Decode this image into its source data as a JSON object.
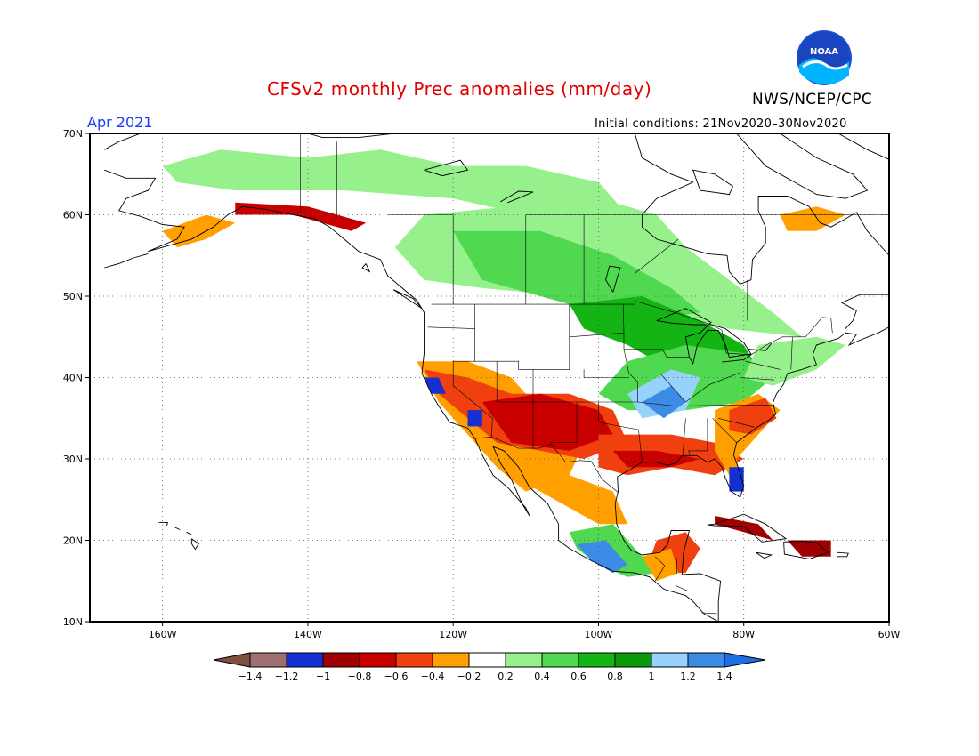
{
  "title": "CFSv2 monthly Prec anomalies (mm/day)",
  "agency": "NWS/NCEP/CPC",
  "logo_text": "NOAA",
  "valid_month": "Apr 2021",
  "initial_conditions": "Initial conditions: 21Nov2020–30Nov2020",
  "lat_labels": [
    "70N",
    "60N",
    "50N",
    "40N",
    "30N",
    "20N",
    "10N"
  ],
  "lon_labels": [
    "160W",
    "140W",
    "120W",
    "100W",
    "80W",
    "60W"
  ],
  "colorbar": {
    "labels": [
      "−1.4",
      "−1.2",
      "−1",
      "−0.8",
      "−0.6",
      "−0.4",
      "−0.2",
      "0.2",
      "0.4",
      "0.6",
      "0.8",
      "1",
      "1.2",
      "1.4"
    ],
    "colors": [
      "#7f4f3f",
      "#a07070",
      "#1530d0",
      "#a00000",
      "#c80000",
      "#f04010",
      "#ffa000",
      "#ffffff",
      "#96f08c",
      "#50d850",
      "#14b414",
      "#0a9a0a",
      "#96d2fa",
      "#3c8ce6",
      "#1e6ee6"
    ]
  },
  "map": {
    "lon_range": [
      -170,
      -60
    ],
    "lat_range": [
      10,
      70
    ],
    "colors": {
      "brown": "#7f4f3f",
      "mauve": "#a07070",
      "blue": "#1530d0",
      "darkred": "#a00000",
      "red": "#c80000",
      "orangered": "#f04010",
      "orange": "#ffa000",
      "lightgreen": "#96f08c",
      "green": "#50d850",
      "darkgreen": "#14b414",
      "deepgreen": "#0a9a0a",
      "lightblue": "#96d2fa",
      "midblue": "#3c8ce6"
    },
    "regions": [
      {
        "name": "alaska-north-green",
        "level": "lightgreen",
        "points": [
          [
            -160,
            66
          ],
          [
            -152,
            68
          ],
          [
            -140,
            67
          ],
          [
            -130,
            68
          ],
          [
            -120,
            66
          ],
          [
            -110,
            66
          ],
          [
            -100,
            64
          ],
          [
            -96,
            60
          ],
          [
            -100,
            58
          ],
          [
            -110,
            60
          ],
          [
            -120,
            62
          ],
          [
            -135,
            63
          ],
          [
            -150,
            63
          ],
          [
            -158,
            64
          ]
        ]
      },
      {
        "name": "canada-central-green",
        "level": "lightgreen",
        "points": [
          [
            -124,
            60
          ],
          [
            -112,
            61
          ],
          [
            -100,
            62
          ],
          [
            -92,
            60
          ],
          [
            -88,
            56
          ],
          [
            -82,
            52
          ],
          [
            -76,
            48
          ],
          [
            -72,
            45
          ],
          [
            -82,
            46
          ],
          [
            -92,
            48
          ],
          [
            -104,
            50
          ],
          [
            -116,
            51
          ],
          [
            -124,
            52
          ],
          [
            -128,
            56
          ]
        ]
      },
      {
        "name": "canada-prairie-green",
        "level": "green",
        "points": [
          [
            -120,
            58
          ],
          [
            -108,
            58
          ],
          [
            -98,
            55
          ],
          [
            -90,
            51
          ],
          [
            -86,
            48
          ],
          [
            -94,
            47
          ],
          [
            -104,
            49
          ],
          [
            -116,
            52
          ]
        ]
      },
      {
        "name": "great-lakes-green",
        "level": "darkgreen",
        "points": [
          [
            -104,
            49
          ],
          [
            -94,
            50
          ],
          [
            -86,
            47
          ],
          [
            -80,
            44
          ],
          [
            -78,
            41
          ],
          [
            -84,
            40
          ],
          [
            -90,
            41
          ],
          [
            -96,
            44
          ],
          [
            -102,
            46
          ]
        ]
      },
      {
        "name": "ohio-valley-green",
        "level": "green",
        "points": [
          [
            -96,
            42
          ],
          [
            -88,
            44
          ],
          [
            -80,
            43
          ],
          [
            -76,
            40
          ],
          [
            -80,
            37
          ],
          [
            -88,
            36
          ],
          [
            -96,
            36
          ],
          [
            -100,
            38
          ]
        ]
      },
      {
        "name": "midwest-blue",
        "level": "lightblue",
        "points": [
          [
            -96,
            38
          ],
          [
            -90,
            41
          ],
          [
            -86,
            40
          ],
          [
            -88,
            36
          ],
          [
            -94,
            35
          ]
        ]
      },
      {
        "name": "midwest-midblue",
        "level": "midblue",
        "points": [
          [
            -94,
            37
          ],
          [
            -90,
            39
          ],
          [
            -88,
            37
          ],
          [
            -91,
            35
          ]
        ]
      },
      {
        "name": "northeast-green",
        "level": "lightgreen",
        "points": [
          [
            -78,
            44
          ],
          [
            -70,
            45
          ],
          [
            -66,
            44
          ],
          [
            -70,
            41
          ],
          [
            -76,
            39
          ],
          [
            -80,
            40
          ]
        ]
      },
      {
        "name": "west-coast-orange",
        "level": "orange",
        "points": [
          [
            -125,
            42
          ],
          [
            -118,
            42
          ],
          [
            -112,
            40
          ],
          [
            -108,
            36
          ],
          [
            -102,
            32
          ],
          [
            -104,
            28
          ],
          [
            -110,
            26
          ],
          [
            -114,
            29
          ],
          [
            -118,
            33
          ],
          [
            -122,
            37
          ]
        ]
      },
      {
        "name": "southwest-red",
        "level": "orangered",
        "points": [
          [
            -124,
            41
          ],
          [
            -118,
            40
          ],
          [
            -112,
            38
          ],
          [
            -104,
            38
          ],
          [
            -98,
            36
          ],
          [
            -96,
            32
          ],
          [
            -102,
            30
          ],
          [
            -108,
            31
          ],
          [
            -114,
            32
          ],
          [
            -118,
            35
          ],
          [
            -122,
            38
          ]
        ]
      },
      {
        "name": "southwest-darkred",
        "level": "red",
        "points": [
          [
            -116,
            37
          ],
          [
            -108,
            38
          ],
          [
            -100,
            36
          ],
          [
            -98,
            33
          ],
          [
            -104,
            31
          ],
          [
            -112,
            32
          ]
        ]
      },
      {
        "name": "gulf-coast-red",
        "level": "orangered",
        "points": [
          [
            -100,
            33
          ],
          [
            -90,
            33
          ],
          [
            -84,
            32
          ],
          [
            -80,
            30
          ],
          [
            -84,
            28
          ],
          [
            -90,
            29
          ],
          [
            -96,
            28
          ],
          [
            -100,
            29
          ]
        ]
      },
      {
        "name": "gulf-coast-darkred",
        "level": "red",
        "points": [
          [
            -98,
            31
          ],
          [
            -92,
            31
          ],
          [
            -86,
            30
          ],
          [
            -90,
            29
          ],
          [
            -96,
            29
          ]
        ]
      },
      {
        "name": "southeast-orange",
        "level": "orange",
        "points": [
          [
            -84,
            36
          ],
          [
            -78,
            38
          ],
          [
            -75,
            36
          ],
          [
            -78,
            33
          ],
          [
            -81,
            30
          ],
          [
            -80,
            26
          ],
          [
            -82,
            28
          ],
          [
            -84,
            31
          ]
        ]
      },
      {
        "name": "carolina-red",
        "level": "orangered",
        "points": [
          [
            -82,
            36
          ],
          [
            -77,
            37.5
          ],
          [
            -75.5,
            35
          ],
          [
            -79,
            33
          ],
          [
            -82,
            33.5
          ]
        ]
      },
      {
        "name": "mexico-orange",
        "level": "orange",
        "points": [
          [
            -112,
            28
          ],
          [
            -104,
            28
          ],
          [
            -98,
            26
          ],
          [
            -96,
            22
          ],
          [
            -100,
            22
          ],
          [
            -104,
            24
          ],
          [
            -108,
            26
          ]
        ]
      },
      {
        "name": "mexico-south-green",
        "level": "green",
        "points": [
          [
            -104,
            21
          ],
          [
            -98,
            22
          ],
          [
            -95,
            19
          ],
          [
            -92,
            16
          ],
          [
            -96,
            15.5
          ],
          [
            -100,
            17
          ],
          [
            -103,
            19
          ]
        ]
      },
      {
        "name": "mexico-south-blue",
        "level": "midblue",
        "points": [
          [
            -103,
            19.5
          ],
          [
            -99,
            20
          ],
          [
            -96,
            17
          ],
          [
            -98,
            16
          ],
          [
            -101,
            17.5
          ]
        ]
      },
      {
        "name": "yucatan-orange",
        "level": "orangered",
        "points": [
          [
            -92,
            20
          ],
          [
            -88,
            21
          ],
          [
            -86,
            19
          ],
          [
            -88,
            16
          ],
          [
            -91,
            16
          ],
          [
            -93,
            17.5
          ]
        ]
      },
      {
        "name": "yucatan-orange-2",
        "level": "orange",
        "points": [
          [
            -94,
            18
          ],
          [
            -90,
            19
          ],
          [
            -89,
            16
          ],
          [
            -92,
            15
          ]
        ]
      },
      {
        "name": "california-blue",
        "level": "blue",
        "points": [
          [
            -124,
            40
          ],
          [
            -122,
            40
          ],
          [
            -121,
            38
          ],
          [
            -123,
            38
          ]
        ]
      },
      {
        "name": "socal-blue",
        "level": "blue",
        "points": [
          [
            -118,
            36
          ],
          [
            -116,
            36
          ],
          [
            -116,
            34
          ],
          [
            -118,
            34
          ]
        ]
      },
      {
        "name": "florida-blue",
        "level": "blue",
        "points": [
          [
            -82,
            29
          ],
          [
            -80,
            29
          ],
          [
            -80,
            26
          ],
          [
            -82,
            26
          ]
        ]
      },
      {
        "name": "caribbean-red",
        "level": "darkred",
        "points": [
          [
            -84,
            23
          ],
          [
            -78,
            22
          ],
          [
            -76,
            20
          ],
          [
            -80,
            21
          ],
          [
            -84,
            22
          ]
        ]
      },
      {
        "name": "hispaniola-red",
        "level": "darkred",
        "points": [
          [
            -74,
            20
          ],
          [
            -68,
            20
          ],
          [
            -68,
            18
          ],
          [
            -72,
            18
          ]
        ]
      },
      {
        "name": "southeast-alaska-red",
        "level": "red",
        "points": [
          [
            -150,
            61.5
          ],
          [
            -140,
            61
          ],
          [
            -132,
            59
          ],
          [
            -134,
            58
          ],
          [
            -142,
            60
          ],
          [
            -150,
            60
          ]
        ]
      },
      {
        "name": "alaska-peninsula-red",
        "level": "orange",
        "points": [
          [
            -160,
            58
          ],
          [
            -154,
            60
          ],
          [
            -150,
            59
          ],
          [
            -154,
            57
          ],
          [
            -158,
            56
          ]
        ]
      },
      {
        "name": "baffin-orange",
        "level": "orange",
        "points": [
          [
            -75,
            60
          ],
          [
            -70,
            61
          ],
          [
            -66,
            60
          ],
          [
            -70,
            58
          ],
          [
            -74,
            58
          ]
        ]
      }
    ]
  }
}
